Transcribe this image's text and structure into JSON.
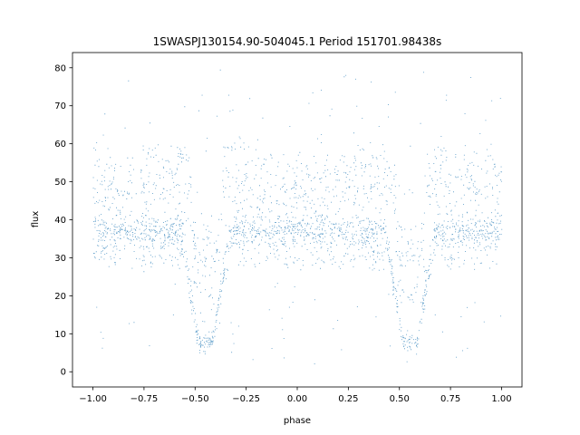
{
  "chart_data": {
    "type": "scatter",
    "title": "1SWASPJ130154.90-504045.1 Period 151701.98438s",
    "xlabel": "phase",
    "ylabel": "flux",
    "xlim": [
      -1.1,
      1.1
    ],
    "ylim": [
      -4,
      84
    ],
    "xticks": [
      -1.0,
      -0.75,
      -0.5,
      -0.25,
      0.0,
      0.25,
      0.5,
      0.75,
      1.0
    ],
    "xtick_labels": [
      "−1.00",
      "−0.75",
      "−0.50",
      "−0.25",
      "0.00",
      "0.25",
      "0.50",
      "0.75",
      "1.00"
    ],
    "yticks": [
      0,
      10,
      20,
      30,
      40,
      50,
      60,
      70,
      80
    ],
    "ytick_labels": [
      "0",
      "10",
      "20",
      "30",
      "40",
      "50",
      "60",
      "70",
      "80"
    ],
    "grid": false,
    "legend": false,
    "point_color": "#1f77b4",
    "x_range": [
      -1.0,
      1.0
    ],
    "baseline_flux": 37,
    "upper_branch_flux": [
      45,
      57
    ],
    "secondary_flux_band": [
      28,
      33
    ],
    "eclipse_centers": [
      -0.45,
      0.55
    ],
    "eclipse_half_width": 0.12,
    "eclipse_min_flux": 8,
    "point_count": 20000
  }
}
